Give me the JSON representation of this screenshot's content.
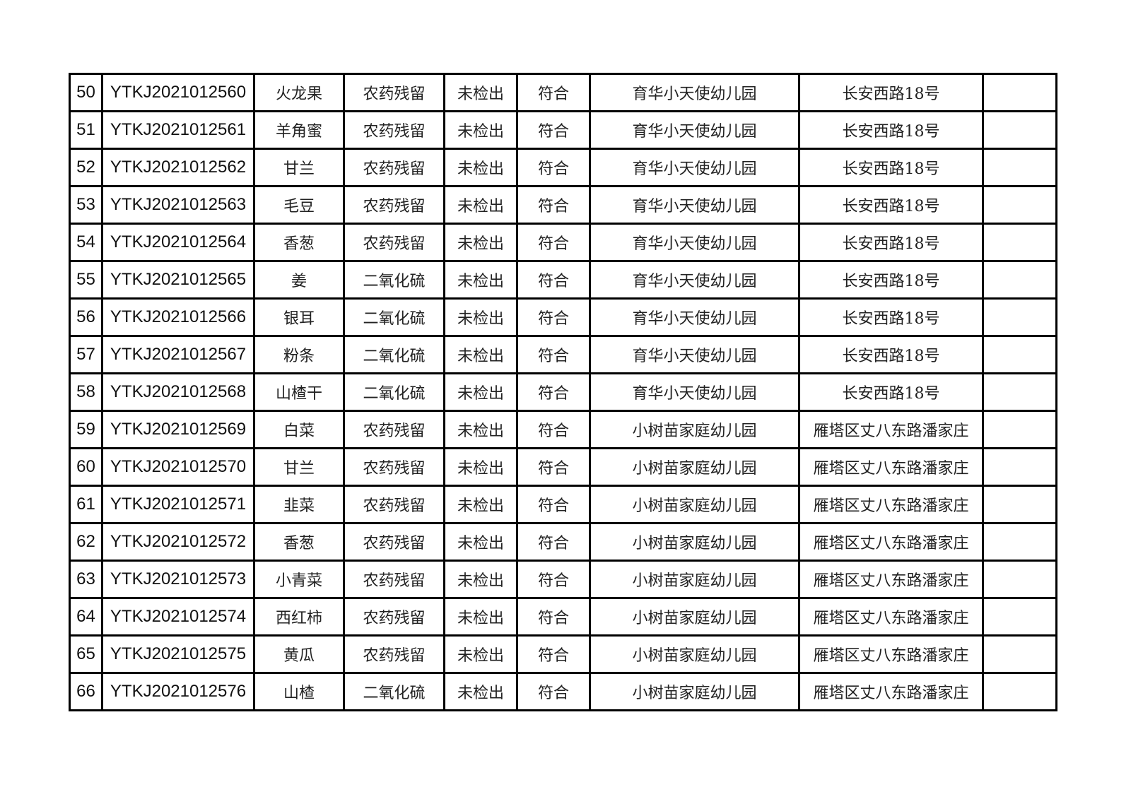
{
  "table": {
    "rows": [
      {
        "no": "50",
        "sample_id": "YTKJ2021012560",
        "sample_name": "火龙果",
        "test_item": "农药残留",
        "result": "未检出",
        "conclusion": "符合",
        "unit": "育华小天使幼儿园",
        "address": "长安西路18号",
        "remark": ""
      },
      {
        "no": "51",
        "sample_id": "YTKJ2021012561",
        "sample_name": "羊角蜜",
        "test_item": "农药残留",
        "result": "未检出",
        "conclusion": "符合",
        "unit": "育华小天使幼儿园",
        "address": "长安西路18号",
        "remark": ""
      },
      {
        "no": "52",
        "sample_id": "YTKJ2021012562",
        "sample_name": "甘兰",
        "test_item": "农药残留",
        "result": "未检出",
        "conclusion": "符合",
        "unit": "育华小天使幼儿园",
        "address": "长安西路18号",
        "remark": ""
      },
      {
        "no": "53",
        "sample_id": "YTKJ2021012563",
        "sample_name": "毛豆",
        "test_item": "农药残留",
        "result": "未检出",
        "conclusion": "符合",
        "unit": "育华小天使幼儿园",
        "address": "长安西路18号",
        "remark": ""
      },
      {
        "no": "54",
        "sample_id": "YTKJ2021012564",
        "sample_name": "香葱",
        "test_item": "农药残留",
        "result": "未检出",
        "conclusion": "符合",
        "unit": "育华小天使幼儿园",
        "address": "长安西路18号",
        "remark": ""
      },
      {
        "no": "55",
        "sample_id": "YTKJ2021012565",
        "sample_name": "姜",
        "test_item": "二氧化硫",
        "result": "未检出",
        "conclusion": "符合",
        "unit": "育华小天使幼儿园",
        "address": "长安西路18号",
        "remark": ""
      },
      {
        "no": "56",
        "sample_id": "YTKJ2021012566",
        "sample_name": "银耳",
        "test_item": "二氧化硫",
        "result": "未检出",
        "conclusion": "符合",
        "unit": "育华小天使幼儿园",
        "address": "长安西路18号",
        "remark": ""
      },
      {
        "no": "57",
        "sample_id": "YTKJ2021012567",
        "sample_name": "粉条",
        "test_item": "二氧化硫",
        "result": "未检出",
        "conclusion": "符合",
        "unit": "育华小天使幼儿园",
        "address": "长安西路18号",
        "remark": ""
      },
      {
        "no": "58",
        "sample_id": "YTKJ2021012568",
        "sample_name": "山楂干",
        "test_item": "二氧化硫",
        "result": "未检出",
        "conclusion": "符合",
        "unit": "育华小天使幼儿园",
        "address": "长安西路18号",
        "remark": ""
      },
      {
        "no": "59",
        "sample_id": "YTKJ2021012569",
        "sample_name": "白菜",
        "test_item": "农药残留",
        "result": "未检出",
        "conclusion": "符合",
        "unit": "小树苗家庭幼儿园",
        "address": "雁塔区丈八东路潘家庄",
        "remark": ""
      },
      {
        "no": "60",
        "sample_id": "YTKJ2021012570",
        "sample_name": "甘兰",
        "test_item": "农药残留",
        "result": "未检出",
        "conclusion": "符合",
        "unit": "小树苗家庭幼儿园",
        "address": "雁塔区丈八东路潘家庄",
        "remark": ""
      },
      {
        "no": "61",
        "sample_id": "YTKJ2021012571",
        "sample_name": "韭菜",
        "test_item": "农药残留",
        "result": "未检出",
        "conclusion": "符合",
        "unit": "小树苗家庭幼儿园",
        "address": "雁塔区丈八东路潘家庄",
        "remark": ""
      },
      {
        "no": "62",
        "sample_id": "YTKJ2021012572",
        "sample_name": "香葱",
        "test_item": "农药残留",
        "result": "未检出",
        "conclusion": "符合",
        "unit": "小树苗家庭幼儿园",
        "address": "雁塔区丈八东路潘家庄",
        "remark": ""
      },
      {
        "no": "63",
        "sample_id": "YTKJ2021012573",
        "sample_name": "小青菜",
        "test_item": "农药残留",
        "result": "未检出",
        "conclusion": "符合",
        "unit": "小树苗家庭幼儿园",
        "address": "雁塔区丈八东路潘家庄",
        "remark": ""
      },
      {
        "no": "64",
        "sample_id": "YTKJ2021012574",
        "sample_name": "西红柿",
        "test_item": "农药残留",
        "result": "未检出",
        "conclusion": "符合",
        "unit": "小树苗家庭幼儿园",
        "address": "雁塔区丈八东路潘家庄",
        "remark": ""
      },
      {
        "no": "65",
        "sample_id": "YTKJ2021012575",
        "sample_name": "黄瓜",
        "test_item": "农药残留",
        "result": "未检出",
        "conclusion": "符合",
        "unit": "小树苗家庭幼儿园",
        "address": "雁塔区丈八东路潘家庄",
        "remark": ""
      },
      {
        "no": "66",
        "sample_id": "YTKJ2021012576",
        "sample_name": "山楂",
        "test_item": "二氧化硫",
        "result": "未检出",
        "conclusion": "符合",
        "unit": "小树苗家庭幼儿园",
        "address": "雁塔区丈八东路潘家庄",
        "remark": ""
      }
    ]
  }
}
